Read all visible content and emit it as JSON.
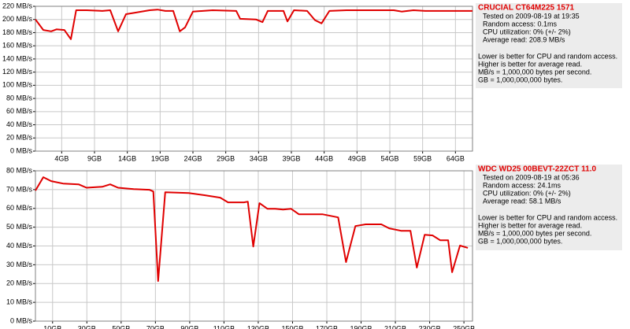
{
  "chart_data": [
    {
      "type": "line",
      "title": "CRUCIAL CT64M225 1571",
      "info": [
        "Tested on 2009-08-19 at 19:35",
        "Random access: 0.1ms",
        "CPU utilization: 0% (+/- 2%)",
        "Average read: 208.9 MB/s"
      ],
      "notes": [
        "Lower is better for CPU and random access.",
        "Higher is better for average read.",
        "MB/s = 1,000,000 bytes per second.",
        "GB = 1,000,000,000 bytes."
      ],
      "color": "#e00000",
      "x": [
        0,
        1.2,
        2.4,
        3.2,
        4.4,
        5.4,
        6.2,
        7.8,
        10.2,
        11.4,
        12.6,
        13.8,
        15.0,
        17.4,
        18.6,
        19.8,
        21.0,
        22.0,
        22.8,
        24.0,
        27.0,
        30.6,
        31.2,
        33.6,
        34.6,
        35.4,
        37.8,
        38.4,
        39.4,
        41.4,
        42.6,
        43.6,
        44.8,
        47.4,
        52.2,
        54.6,
        55.8,
        57.6,
        59.4,
        66.6
      ],
      "values": [
        200,
        184,
        182,
        185,
        184,
        170,
        214,
        214,
        213,
        214,
        182,
        208,
        210,
        214,
        215,
        213,
        213,
        182,
        188,
        212,
        214,
        213,
        201,
        200,
        196,
        213,
        213,
        197,
        214,
        213,
        199,
        194,
        213,
        214,
        214,
        214,
        212,
        214,
        213,
        213
      ],
      "xlim": [
        0,
        66.6
      ],
      "xticks": [
        {
          "value": 4,
          "label": "4GB"
        },
        {
          "value": 9,
          "label": "9GB"
        },
        {
          "value": 14,
          "label": "14GB"
        },
        {
          "value": 19,
          "label": "19GB"
        },
        {
          "value": 24,
          "label": "24GB"
        },
        {
          "value": 29,
          "label": "29GB"
        },
        {
          "value": 34,
          "label": "34GB"
        },
        {
          "value": 39,
          "label": "39GB"
        },
        {
          "value": 44,
          "label": "44GB"
        },
        {
          "value": 49,
          "label": "49GB"
        },
        {
          "value": 54,
          "label": "54GB"
        },
        {
          "value": 59,
          "label": "59GB"
        },
        {
          "value": 64,
          "label": "64GB"
        }
      ],
      "ylim": [
        0,
        220
      ],
      "yticks": [
        {
          "value": 0,
          "label": "0 MB/s"
        },
        {
          "value": 20,
          "label": "20 MB/s"
        },
        {
          "value": 40,
          "label": "40 MB/s"
        },
        {
          "value": 60,
          "label": "60 MB/s"
        },
        {
          "value": 80,
          "label": "80 MB/s"
        },
        {
          "value": 100,
          "label": "100 MB/s"
        },
        {
          "value": 120,
          "label": "120 MB/s"
        },
        {
          "value": 140,
          "label": "140 MB/s"
        },
        {
          "value": 160,
          "label": "160 MB/s"
        },
        {
          "value": 180,
          "label": "180 MB/s"
        },
        {
          "value": 200,
          "label": "200 MB/s"
        },
        {
          "value": 220,
          "label": "220 MB/s"
        }
      ],
      "grid": true
    },
    {
      "type": "line",
      "title": "WDC WD25 00BEVT-22ZCT 11.0",
      "info": [
        "Tested on 2009-08-19 at 05:36",
        "Random access: 24.1ms",
        "CPU utilization: 0% (+/- 2%)",
        "Average read: 58.1 MB/s"
      ],
      "notes": [
        "Lower is better for CPU and random access.",
        "Higher is better for average read.",
        "MB/s = 1,000,000 bytes per second.",
        "GB = 1,000,000,000 bytes."
      ],
      "color": "#e00000",
      "x": [
        0,
        4.6,
        9.2,
        16.1,
        25.2,
        29.8,
        39.0,
        43.6,
        48.2,
        57.3,
        66.5,
        68.8,
        71.6,
        75.7,
        89.4,
        98.6,
        107.8,
        112.4,
        121.6,
        123.9,
        127.1,
        130.7,
        135.3,
        139.9,
        144.5,
        149.1,
        153.7,
        167.4,
        176.6,
        181.2,
        186.7,
        192.7,
        201.8,
        206.4,
        213.3,
        218.8,
        222.5,
        227.1,
        231.7,
        236.2,
        240.8,
        243.1,
        247.7,
        252.3
      ],
      "values": [
        69.5,
        76.6,
        74.5,
        73.2,
        72.8,
        71,
        71.5,
        72.8,
        71,
        70.3,
        69.9,
        69,
        21.3,
        68.6,
        68.2,
        67,
        65.7,
        63.2,
        63.2,
        63.6,
        39.7,
        62.8,
        59.8,
        59.8,
        59.4,
        59.8,
        56.9,
        56.9,
        55.2,
        31.4,
        50.6,
        51.5,
        51.5,
        49.4,
        48.1,
        48.1,
        28.5,
        46,
        45.6,
        43,
        43,
        26,
        40.2,
        39
      ],
      "xlim": [
        0,
        255
      ],
      "xticks": [
        {
          "value": 10,
          "label": "10GB"
        },
        {
          "value": 30,
          "label": "30GB"
        },
        {
          "value": 50,
          "label": "50GB"
        },
        {
          "value": 70,
          "label": "70GB"
        },
        {
          "value": 90,
          "label": "90GB"
        },
        {
          "value": 110,
          "label": "110GB"
        },
        {
          "value": 130,
          "label": "130GB"
        },
        {
          "value": 150,
          "label": "150GB"
        },
        {
          "value": 170,
          "label": "170GB"
        },
        {
          "value": 190,
          "label": "190GB"
        },
        {
          "value": 210,
          "label": "210GB"
        },
        {
          "value": 230,
          "label": "230GB"
        },
        {
          "value": 250,
          "label": "250GB"
        }
      ],
      "ylim": [
        0,
        80
      ],
      "yticks": [
        {
          "value": 0,
          "label": "0 MB/s"
        },
        {
          "value": 10,
          "label": "10 MB/s"
        },
        {
          "value": 20,
          "label": "20 MB/s"
        },
        {
          "value": 30,
          "label": "30 MB/s"
        },
        {
          "value": 40,
          "label": "40 MB/s"
        },
        {
          "value": 50,
          "label": "50 MB/s"
        },
        {
          "value": 60,
          "label": "60 MB/s"
        },
        {
          "value": 70,
          "label": "70 MB/s"
        },
        {
          "value": 80,
          "label": "80 MB/s"
        }
      ],
      "grid": true
    }
  ]
}
